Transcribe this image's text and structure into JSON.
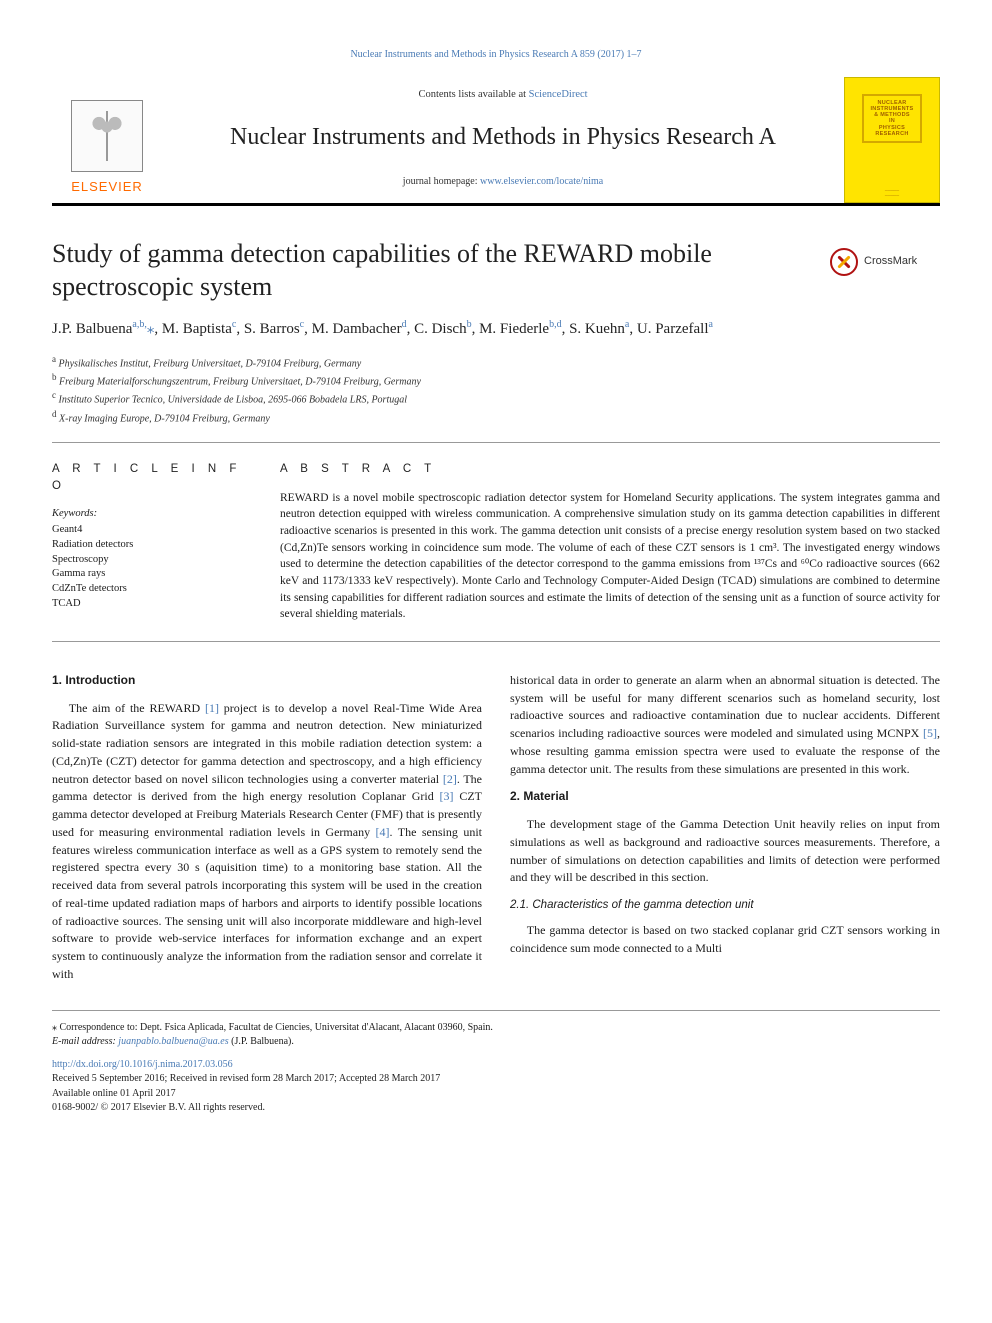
{
  "citation_line": "Nuclear Instruments and Methods in Physics Research A 859 (2017) 1–7",
  "header": {
    "contents_prefix": "Contents lists available at ",
    "sciencedirect": "ScienceDirect",
    "journal_name": "Nuclear Instruments and Methods in Physics Research A",
    "homepage_prefix": "journal homepage: ",
    "homepage_url": "www.elsevier.com/locate/nima",
    "elsevier_word": "ELSEVIER",
    "cover": {
      "l1": "NUCLEAR",
      "l2": "INSTRUMENTS",
      "l3": "& METHODS",
      "l4": "IN",
      "l5": "PHYSICS",
      "l6": "RESEARCH"
    }
  },
  "crossmark_label": "CrossMark",
  "title": "Study of gamma detection capabilities of the REWARD mobile spectroscopic system",
  "authors_html": "J.P. Balbuena<sup>a,b,</sup><span class='star'>⁎</span>, M. Baptista<sup>c</sup>, S. Barros<sup>c</sup>, M. Dambacher<sup>d</sup>, C. Disch<sup>b</sup>, M. Fiederle<sup>b,d</sup>, S. Kuehn<sup>a</sup>, U. Parzefall<sup>a</sup>",
  "affiliations": {
    "a": "Physikalisches Institut, Freiburg Universitaet, D-79104 Freiburg, Germany",
    "b": "Freiburg Materialforschungszentrum, Freiburg Universitaet, D-79104 Freiburg, Germany",
    "c": "Instituto Superior Tecnico, Universidade de Lisboa, 2695-066 Bobadela LRS, Portugal",
    "d": "X-ray Imaging Europe, D-79104 Freiburg, Germany"
  },
  "info_heading": "A R T I C L E   I N F O",
  "abstract_heading": "A B S T R A C T",
  "keywords_label": "Keywords:",
  "keywords": [
    "Geant4",
    "Radiation detectors",
    "Spectroscopy",
    "Gamma rays",
    "CdZnTe detectors",
    "TCAD"
  ],
  "abstract": "REWARD is a novel mobile spectroscopic radiation detector system for Homeland Security applications. The system integrates gamma and neutron detection equipped with wireless communication. A comprehensive simulation study on its gamma detection capabilities in different radioactive scenarios is presented in this work. The gamma detection unit consists of a precise energy resolution system based on two stacked (Cd,Zn)Te sensors working in coincidence sum mode. The volume of each of these CZT sensors is 1 cm³. The investigated energy windows used to determine the detection capabilities of the detector correspond to the gamma emissions from ¹³⁷Cs and ⁶⁰Co radioactive sources (662 keV and 1173/1333 keV respectively). Monte Carlo and Technology Computer-Aided Design (TCAD) simulations are combined to determine its sensing capabilities for different radiation sources and estimate the limits of detection of the sensing unit as a function of source activity for several shielding materials.",
  "sections": {
    "s1_heading": "1. Introduction",
    "s1_p1": "The aim of the REWARD [1] project is to develop a novel Real-Time Wide Area Radiation Surveillance system for gamma and neutron detection. New miniaturized solid-state radiation sensors are integrated in this mobile radiation detection system: a (Cd,Zn)Te (CZT) detector for gamma detection and spectroscopy, and a high efficiency neutron detector based on novel silicon technologies using a converter material [2]. The gamma detector is derived from the high energy resolution Coplanar Grid [3] CZT gamma detector developed at Freiburg Materials Research Center (FMF) that is presently used for measuring environmental radiation levels in Germany [4]. The sensing unit features wireless communication interface as well as a GPS system to remotely send the registered spectra every 30 s (aquisition time) to a monitoring base station. All the received data from several patrols incorporating this system will be used in the creation of real-time updated radiation maps of harbors and airports to identify possible locations of radioactive sources. The sensing unit will also incorporate middleware and high-level software to provide web-service interfaces for information exchange and an expert system to continuously analyze the information from the radiation sensor and correlate it with",
    "s1_p2": "historical data in order to generate an alarm when an abnormal situation is detected. The system will be useful for many different scenarios such as homeland security, lost radioactive sources and radioactive contamination due to nuclear accidents. Different scenarios including radioactive sources were modeled and simulated using MCNPX [5], whose resulting gamma emission spectra were used to evaluate the response of the gamma detector unit. The results from these simulations are presented in this work.",
    "s2_heading": "2. Material",
    "s2_p1": "The development stage of the Gamma Detection Unit heavily relies on input from simulations as well as background and radioactive sources measurements. Therefore, a number of simulations on detection capabilities and limits of detection were performed and they will be described in this section.",
    "s21_heading": "2.1. Characteristics of the gamma detection unit",
    "s21_p1": "The gamma detector is based on two stacked coplanar grid CZT sensors working in coincidence sum mode connected to a Multi"
  },
  "footer": {
    "corr_label": "⁎ Correspondence to: Dept. Fsica Aplicada, Facultat de Ciencies, Universitat d'Alacant, Alacant 03960, Spain.",
    "email_label": "E-mail address: ",
    "email": "juanpablo.balbuena@ua.es",
    "email_suffix": " (J.P. Balbuena).",
    "doi": "http://dx.doi.org/10.1016/j.nima.2017.03.056",
    "history": "Received 5 September 2016; Received in revised form 28 March 2017; Accepted 28 March 2017",
    "available": "Available online 01 April 2017",
    "copyright": "0168-9002/ © 2017 Elsevier B.V. All rights reserved."
  },
  "colors": {
    "link": "#4a7bb5",
    "elsevier_orange": "#ff6a00",
    "cover_yellow": "#ffe400",
    "rule": "#000000"
  }
}
